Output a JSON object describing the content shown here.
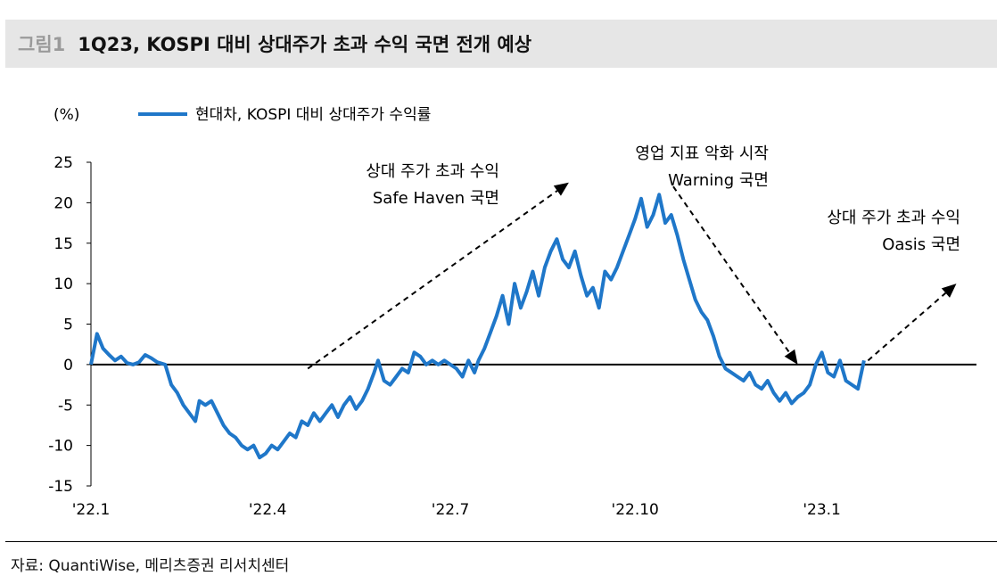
{
  "header": {
    "fig_label": "그림1",
    "title": "1Q23, KOSPI 대비 상대주가 초과 수익 국면 전개 예상"
  },
  "source": "자료: QuantiWise, 메리츠증권 리서치센터",
  "chart_data": {
    "type": "line",
    "unit_label": "(%)",
    "ylim": [
      -15,
      25
    ],
    "yticks": [
      "25",
      "20",
      "15",
      "10",
      "5",
      "0",
      "-5",
      "-10",
      "-15"
    ],
    "xlim": [
      "2022-01-03",
      "2023-03-20"
    ],
    "xticks": [
      {
        "label": "'22.1",
        "date": "2022-01-03"
      },
      {
        "label": "'22.4",
        "date": "2022-04-01"
      },
      {
        "label": "'22.7",
        "date": "2022-07-01"
      },
      {
        "label": "'22.10",
        "date": "2022-10-01"
      },
      {
        "label": "'23.1",
        "date": "2023-01-02"
      }
    ],
    "grid": false,
    "zero_line": true,
    "legend_position": "top-left",
    "colors": {
      "series": "#1f77c9",
      "axis": "#000000",
      "arrow": "#000000"
    },
    "series": [
      {
        "name": "현대차, KOSPI 대비 상대주가 수익률",
        "points": [
          [
            "2022-01-03",
            0.0
          ],
          [
            "2022-01-06",
            3.8
          ],
          [
            "2022-01-09",
            2.0
          ],
          [
            "2022-01-12",
            1.2
          ],
          [
            "2022-01-15",
            0.5
          ],
          [
            "2022-01-18",
            1.0
          ],
          [
            "2022-01-21",
            0.2
          ],
          [
            "2022-01-24",
            0.0
          ],
          [
            "2022-01-27",
            0.3
          ],
          [
            "2022-01-30",
            1.2
          ],
          [
            "2022-02-02",
            0.8
          ],
          [
            "2022-02-05",
            0.3
          ],
          [
            "2022-02-09",
            0.0
          ],
          [
            "2022-02-12",
            -2.5
          ],
          [
            "2022-02-15",
            -3.5
          ],
          [
            "2022-02-18",
            -5.0
          ],
          [
            "2022-02-21",
            -6.0
          ],
          [
            "2022-02-24",
            -7.0
          ],
          [
            "2022-02-26",
            -4.5
          ],
          [
            "2022-03-01",
            -5.0
          ],
          [
            "2022-03-04",
            -4.5
          ],
          [
            "2022-03-07",
            -6.0
          ],
          [
            "2022-03-10",
            -7.5
          ],
          [
            "2022-03-13",
            -8.5
          ],
          [
            "2022-03-16",
            -9.0
          ],
          [
            "2022-03-19",
            -10.0
          ],
          [
            "2022-03-22",
            -10.5
          ],
          [
            "2022-03-25",
            -10.0
          ],
          [
            "2022-03-28",
            -11.5
          ],
          [
            "2022-03-31",
            -11.0
          ],
          [
            "2022-04-03",
            -10.0
          ],
          [
            "2022-04-06",
            -10.5
          ],
          [
            "2022-04-09",
            -9.5
          ],
          [
            "2022-04-12",
            -8.5
          ],
          [
            "2022-04-15",
            -9.0
          ],
          [
            "2022-04-18",
            -7.0
          ],
          [
            "2022-04-21",
            -7.5
          ],
          [
            "2022-04-24",
            -6.0
          ],
          [
            "2022-04-27",
            -7.0
          ],
          [
            "2022-04-30",
            -6.0
          ],
          [
            "2022-05-03",
            -5.0
          ],
          [
            "2022-05-06",
            -6.5
          ],
          [
            "2022-05-09",
            -5.0
          ],
          [
            "2022-05-12",
            -4.0
          ],
          [
            "2022-05-15",
            -5.5
          ],
          [
            "2022-05-18",
            -4.5
          ],
          [
            "2022-05-21",
            -3.0
          ],
          [
            "2022-05-24",
            -1.0
          ],
          [
            "2022-05-26",
            0.5
          ],
          [
            "2022-05-29",
            -2.0
          ],
          [
            "2022-06-01",
            -2.5
          ],
          [
            "2022-06-04",
            -1.5
          ],
          [
            "2022-06-07",
            -0.5
          ],
          [
            "2022-06-10",
            -1.0
          ],
          [
            "2022-06-13",
            1.5
          ],
          [
            "2022-06-16",
            1.0
          ],
          [
            "2022-06-19",
            0.0
          ],
          [
            "2022-06-22",
            0.5
          ],
          [
            "2022-06-25",
            0.0
          ],
          [
            "2022-06-28",
            0.5
          ],
          [
            "2022-07-01",
            0.0
          ],
          [
            "2022-07-04",
            -0.5
          ],
          [
            "2022-07-07",
            -1.5
          ],
          [
            "2022-07-10",
            0.5
          ],
          [
            "2022-07-13",
            -1.0
          ],
          [
            "2022-07-15",
            0.5
          ],
          [
            "2022-07-18",
            2.0
          ],
          [
            "2022-07-21",
            4.0
          ],
          [
            "2022-07-24",
            6.0
          ],
          [
            "2022-07-27",
            8.5
          ],
          [
            "2022-07-30",
            5.0
          ],
          [
            "2022-08-02",
            10.0
          ],
          [
            "2022-08-05",
            7.0
          ],
          [
            "2022-08-08",
            9.0
          ],
          [
            "2022-08-11",
            11.5
          ],
          [
            "2022-08-14",
            8.5
          ],
          [
            "2022-08-17",
            12.0
          ],
          [
            "2022-08-20",
            14.0
          ],
          [
            "2022-08-23",
            15.5
          ],
          [
            "2022-08-26",
            13.0
          ],
          [
            "2022-08-29",
            12.0
          ],
          [
            "2022-09-01",
            14.0
          ],
          [
            "2022-09-04",
            11.0
          ],
          [
            "2022-09-07",
            8.5
          ],
          [
            "2022-09-10",
            9.5
          ],
          [
            "2022-09-13",
            7.0
          ],
          [
            "2022-09-16",
            11.5
          ],
          [
            "2022-09-19",
            10.5
          ],
          [
            "2022-09-22",
            12.0
          ],
          [
            "2022-09-25",
            14.0
          ],
          [
            "2022-09-28",
            16.0
          ],
          [
            "2022-10-01",
            18.0
          ],
          [
            "2022-10-04",
            20.5
          ],
          [
            "2022-10-07",
            17.0
          ],
          [
            "2022-10-10",
            18.5
          ],
          [
            "2022-10-13",
            21.0
          ],
          [
            "2022-10-16",
            17.5
          ],
          [
            "2022-10-19",
            18.5
          ],
          [
            "2022-10-22",
            16.0
          ],
          [
            "2022-10-25",
            13.0
          ],
          [
            "2022-10-28",
            10.5
          ],
          [
            "2022-10-31",
            8.0
          ],
          [
            "2022-11-03",
            6.5
          ],
          [
            "2022-11-06",
            5.5
          ],
          [
            "2022-11-09",
            3.5
          ],
          [
            "2022-11-12",
            1.0
          ],
          [
            "2022-11-15",
            -0.5
          ],
          [
            "2022-11-18",
            -1.0
          ],
          [
            "2022-11-21",
            -1.5
          ],
          [
            "2022-11-24",
            -2.0
          ],
          [
            "2022-11-27",
            -1.0
          ],
          [
            "2022-11-30",
            -2.5
          ],
          [
            "2022-12-03",
            -3.0
          ],
          [
            "2022-12-06",
            -2.0
          ],
          [
            "2022-12-09",
            -3.5
          ],
          [
            "2022-12-12",
            -4.5
          ],
          [
            "2022-12-15",
            -3.5
          ],
          [
            "2022-12-18",
            -4.8
          ],
          [
            "2022-12-21",
            -4.0
          ],
          [
            "2022-12-24",
            -3.5
          ],
          [
            "2022-12-27",
            -2.5
          ],
          [
            "2022-12-30",
            0.0
          ],
          [
            "2023-01-02",
            1.5
          ],
          [
            "2023-01-05",
            -1.0
          ],
          [
            "2023-01-08",
            -1.5
          ],
          [
            "2023-01-11",
            0.5
          ],
          [
            "2023-01-14",
            -2.0
          ],
          [
            "2023-01-17",
            -2.5
          ],
          [
            "2023-01-20",
            -3.0
          ],
          [
            "2023-01-23",
            0.5
          ]
        ]
      }
    ],
    "annotations": [
      {
        "lines": [
          "상대 주가 초과 수익",
          "Safe Haven 국면"
        ],
        "arrow_from": [
          "2022-04-21",
          -0.5
        ],
        "arrow_to": [
          "2022-08-29",
          22.5
        ]
      },
      {
        "lines": [
          "영업 지표 악화 시작",
          "Warning 국면"
        ],
        "arrow_from": [
          "2022-10-20",
          22.0
        ],
        "arrow_to": [
          "2022-12-21",
          0.0
        ]
      },
      {
        "lines": [
          "상대 주가 초과 수익",
          "Oasis 국면"
        ],
        "arrow_from": [
          "2023-01-25",
          0.5
        ],
        "arrow_to": [
          "2023-03-10",
          10.0
        ]
      }
    ]
  }
}
